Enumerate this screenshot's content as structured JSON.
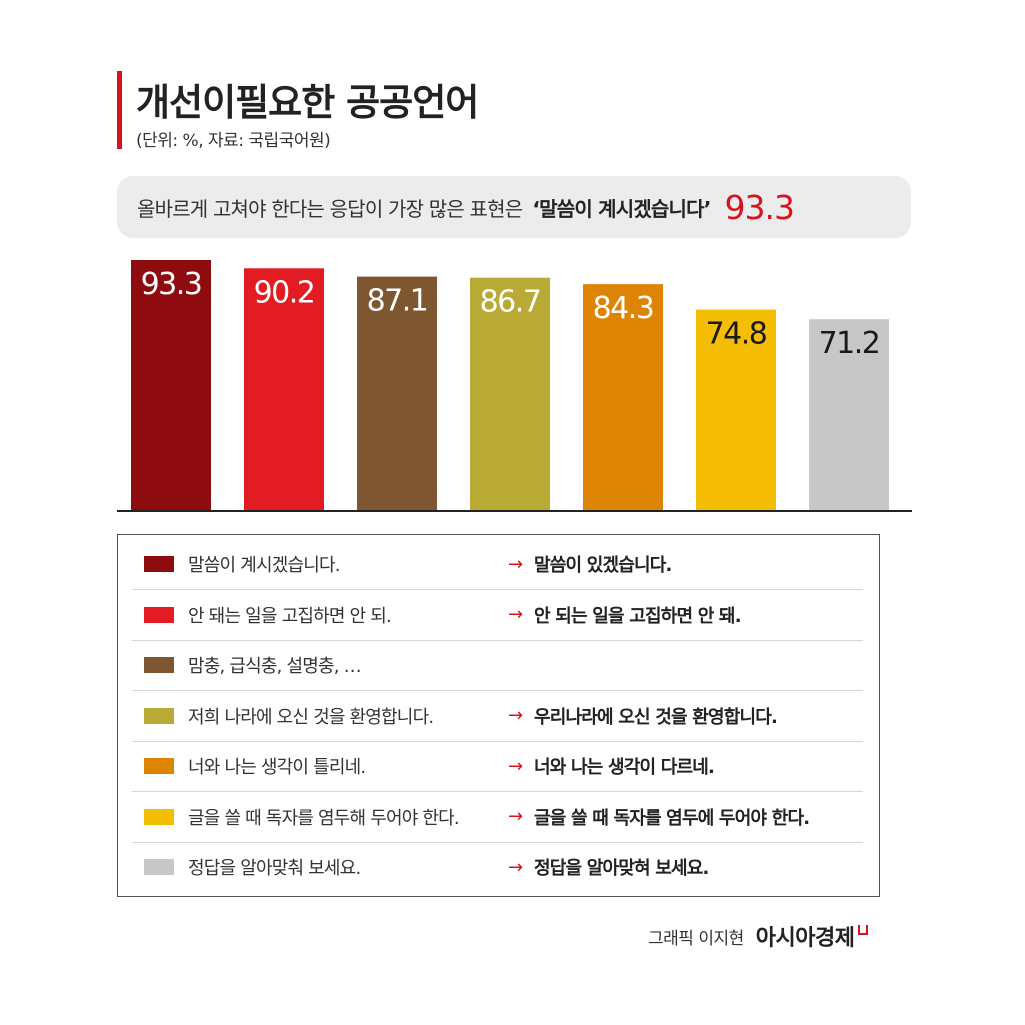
{
  "title": "개선이필요한 공공언어",
  "subtitle": "(단위: %, 자료: 국립국어원)",
  "highlight": {
    "text": "올바르게 고쳐야 한다는 응답이 가장 많은 표현은",
    "phrase": "‘말씀이 계시겠습니다’",
    "value": "93.3",
    "value_color": "#d7141e"
  },
  "chart_data": {
    "type": "bar",
    "categories": [
      "말씀이 계시겠습니다.",
      "안 돼는 일을 고집하면 안 되.",
      "맘충, 급식충, 설명충, …",
      "저희 나라에 오신 것을 환영합니다.",
      "너와 나는 생각이 틀리네.",
      "글을 쓸 때 독자를 염두해 두어야 한다.",
      "정답을 알아맞춰 보세요."
    ],
    "values": [
      93.3,
      90.2,
      87.1,
      86.7,
      84.3,
      74.8,
      71.2
    ],
    "value_labels": [
      "93.3",
      "90.2",
      "87.1",
      "86.7",
      "84.3",
      "74.8",
      "71.2"
    ],
    "colors": [
      "#8e0c10",
      "#e31b23",
      "#7e5630",
      "#b9a935",
      "#de8405",
      "#f6bd05",
      "#c7c7c7"
    ],
    "label_colors": [
      "#ffffff",
      "#ffffff",
      "#ffffff",
      "#ffffff",
      "#ffffff",
      "#1a1a1a",
      "#1a1a1a"
    ],
    "ylim": [
      0,
      93.3
    ],
    "grid": false
  },
  "legend": [
    {
      "text": "말씀이 계시겠습니다.",
      "arrow": "→",
      "fix": "말씀이 있겠습니다.",
      "color": "#8e0c10"
    },
    {
      "text": "안 돼는 일을 고집하면 안 되.",
      "arrow": "→",
      "fix": "안 되는 일을 고집하면 안 돼.",
      "color": "#e31b23"
    },
    {
      "text": "맘충, 급식충, 설명충, …",
      "arrow": "",
      "fix": "",
      "color": "#7e5630"
    },
    {
      "text": "저희 나라에 오신 것을 환영합니다.",
      "arrow": "→",
      "fix": "우리나라에 오신 것을 환영합니다.",
      "color": "#b9a935"
    },
    {
      "text": "너와 나는 생각이 틀리네.",
      "arrow": "→",
      "fix": "너와 나는 생각이 다르네.",
      "color": "#de8405"
    },
    {
      "text": "글을 쓸 때 독자를 염두해 두어야 한다.",
      "arrow": "→",
      "fix": "글을 쓸 때 독자를 염두에 두어야 한다.",
      "color": "#f6bd05"
    },
    {
      "text": "정답을 알아맞춰 보세요.",
      "arrow": "→",
      "fix": "정답을 알아맞혀 보세요.",
      "color": "#c7c7c7"
    }
  ],
  "credit": {
    "text": "그래픽 이지현",
    "brand": "아시아경제"
  }
}
